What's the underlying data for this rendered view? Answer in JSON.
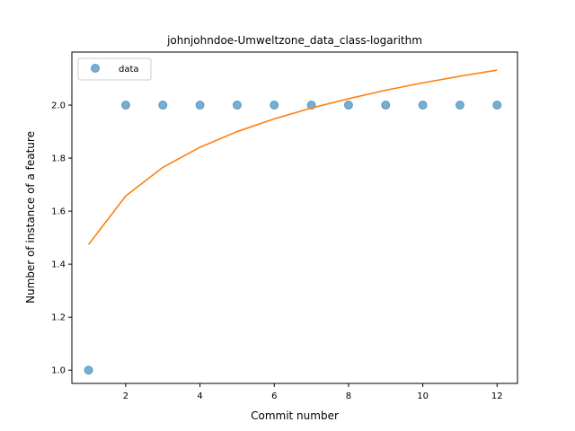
{
  "chart_data": {
    "type": "scatter",
    "title": "johnjohndoe-Umweltzone_data_class-logarithm",
    "xlabel": "Commit number",
    "ylabel": "Number of instance of a feature",
    "xlim": [
      0.55,
      12.55
    ],
    "ylim": [
      0.95,
      2.2
    ],
    "x_ticks": [
      2,
      4,
      6,
      8,
      10,
      12
    ],
    "y_ticks": [
      1.0,
      1.2,
      1.4,
      1.6,
      1.8,
      2.0
    ],
    "x_tick_labels": [
      "2",
      "4",
      "6",
      "8",
      "10",
      "12"
    ],
    "y_tick_labels": [
      "1.0",
      "1.2",
      "1.4",
      "1.6",
      "1.8",
      "2.0"
    ],
    "grid": false,
    "legend": {
      "position": "top-left",
      "entries": [
        "data"
      ]
    },
    "series": [
      {
        "name": "data",
        "kind": "scatter",
        "color": "#1f77b4",
        "x": [
          1,
          2,
          3,
          4,
          5,
          6,
          7,
          8,
          9,
          10,
          11,
          12
        ],
        "y": [
          1,
          2,
          2,
          2,
          2,
          2,
          2,
          2,
          2,
          2,
          2,
          2
        ]
      },
      {
        "kind": "line",
        "color": "#ff7f0e",
        "x": [
          1,
          2,
          3,
          4,
          5,
          6,
          7,
          8,
          9,
          10,
          11,
          12
        ],
        "y": [
          1.474,
          1.657,
          1.765,
          1.841,
          1.9,
          1.948,
          1.989,
          2.024,
          2.056,
          2.084,
          2.109,
          2.132
        ]
      }
    ]
  }
}
